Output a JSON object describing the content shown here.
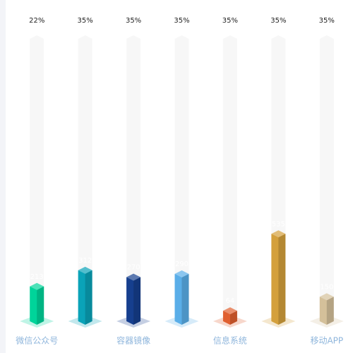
{
  "chart_data": {
    "type": "bar",
    "categories": [
      "微信公众号",
      null,
      "容器镜像",
      null,
      "信息系统",
      null,
      "移动APP"
    ],
    "values": [
      213,
      312,
      270,
      290,
      64,
      535,
      150
    ],
    "colors": [
      "#00d49a",
      "#0aa3b8",
      "#163f8e",
      "#5aaee8",
      "#e06030",
      "#d4a03c",
      "#d4c09a"
    ],
    "top_labels": [
      "22%",
      "35%",
      "35%",
      "35%",
      "35%",
      "35%",
      "35%"
    ],
    "ylim": [
      0,
      1730
    ]
  }
}
